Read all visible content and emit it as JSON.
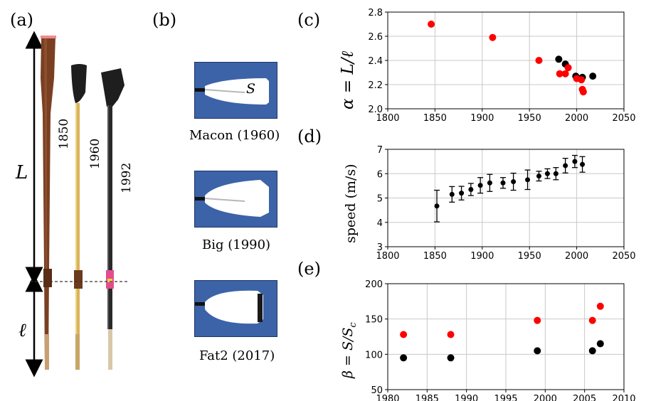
{
  "panels": {
    "a": "(a)",
    "b": "(b)",
    "c": "(c)",
    "d": "(d)",
    "e": "(e)"
  },
  "oars": {
    "labels": [
      "1850",
      "1960",
      "1992"
    ],
    "L_label": "L",
    "l_label": "ℓ",
    "colors": {
      "wood": "#7a3f22",
      "yellow": "#d9b35a",
      "black": "#2a2a2a",
      "tip": "#f08a8a",
      "collar": "#e54b8f"
    }
  },
  "blades": [
    {
      "caption": "Macon (1960)",
      "area_label": "S"
    },
    {
      "caption": "Big (1990)"
    },
    {
      "caption": "Fat2 (2017)"
    }
  ],
  "chart_data": [
    {
      "id": "c",
      "type": "scatter",
      "ylabel": "α = L/ℓ",
      "xlim": [
        1800,
        2050
      ],
      "ylim": [
        2.0,
        2.8
      ],
      "xticks": [
        "1800",
        "1850",
        "1900",
        "1950",
        "2000",
        "2050"
      ],
      "yticks": [
        "2.0",
        "2.2",
        "2.4",
        "2.6",
        "2.8"
      ],
      "grid": true,
      "series": [
        {
          "name": "black",
          "color": "#000000",
          "x": [
            1981,
            1988,
            1999,
            2004,
            2006,
            2017
          ],
          "y": [
            2.41,
            2.37,
            2.27,
            2.25,
            2.26,
            2.27
          ]
        },
        {
          "name": "red",
          "color": "#ff0000",
          "x": [
            1846,
            1911,
            1960,
            1982,
            1988,
            1991,
            2000,
            2005,
            2006,
            2007
          ],
          "y": [
            2.7,
            2.59,
            2.4,
            2.29,
            2.29,
            2.34,
            2.25,
            2.24,
            2.16,
            2.14
          ]
        }
      ]
    },
    {
      "id": "d",
      "type": "scatter",
      "ylabel": "speed (m/s)",
      "xlim": [
        1800,
        2050
      ],
      "ylim": [
        3,
        7
      ],
      "xticks": [
        "1800",
        "1850",
        "1900",
        "1950",
        "2000",
        "2050"
      ],
      "yticks": [
        "3",
        "4",
        "5",
        "6",
        "7"
      ],
      "grid": true,
      "series": [
        {
          "name": "speed",
          "color": "#000000",
          "x": [
            1852,
            1868,
            1878,
            1888,
            1898,
            1908,
            1922,
            1933,
            1948,
            1960,
            1969,
            1978,
            1988,
            1998,
            2006
          ],
          "y": [
            4.67,
            5.15,
            5.2,
            5.35,
            5.52,
            5.62,
            5.62,
            5.67,
            5.75,
            5.9,
            6.0,
            6.0,
            6.33,
            6.5,
            6.38
          ],
          "err": [
            0.65,
            0.32,
            0.28,
            0.25,
            0.32,
            0.35,
            0.22,
            0.35,
            0.4,
            0.2,
            0.2,
            0.25,
            0.3,
            0.25,
            0.32
          ]
        }
      ]
    },
    {
      "id": "e",
      "type": "scatter",
      "ylabel": "β = S/S_c",
      "xlim": [
        1980,
        2010
      ],
      "ylim": [
        50,
        200
      ],
      "xticks": [
        "1980",
        "1985",
        "1990",
        "1995",
        "2000",
        "2005",
        "2010"
      ],
      "yticks": [
        "50",
        "100",
        "150",
        "200"
      ],
      "grid": true,
      "series": [
        {
          "name": "black",
          "color": "#000000",
          "x": [
            1982,
            1988,
            1999,
            2006,
            2007
          ],
          "y": [
            95,
            95,
            105,
            105,
            115
          ]
        },
        {
          "name": "red",
          "color": "#ff0000",
          "x": [
            1982,
            1988,
            1999,
            2006,
            2007
          ],
          "y": [
            128,
            128,
            148,
            148,
            168
          ]
        }
      ]
    }
  ]
}
